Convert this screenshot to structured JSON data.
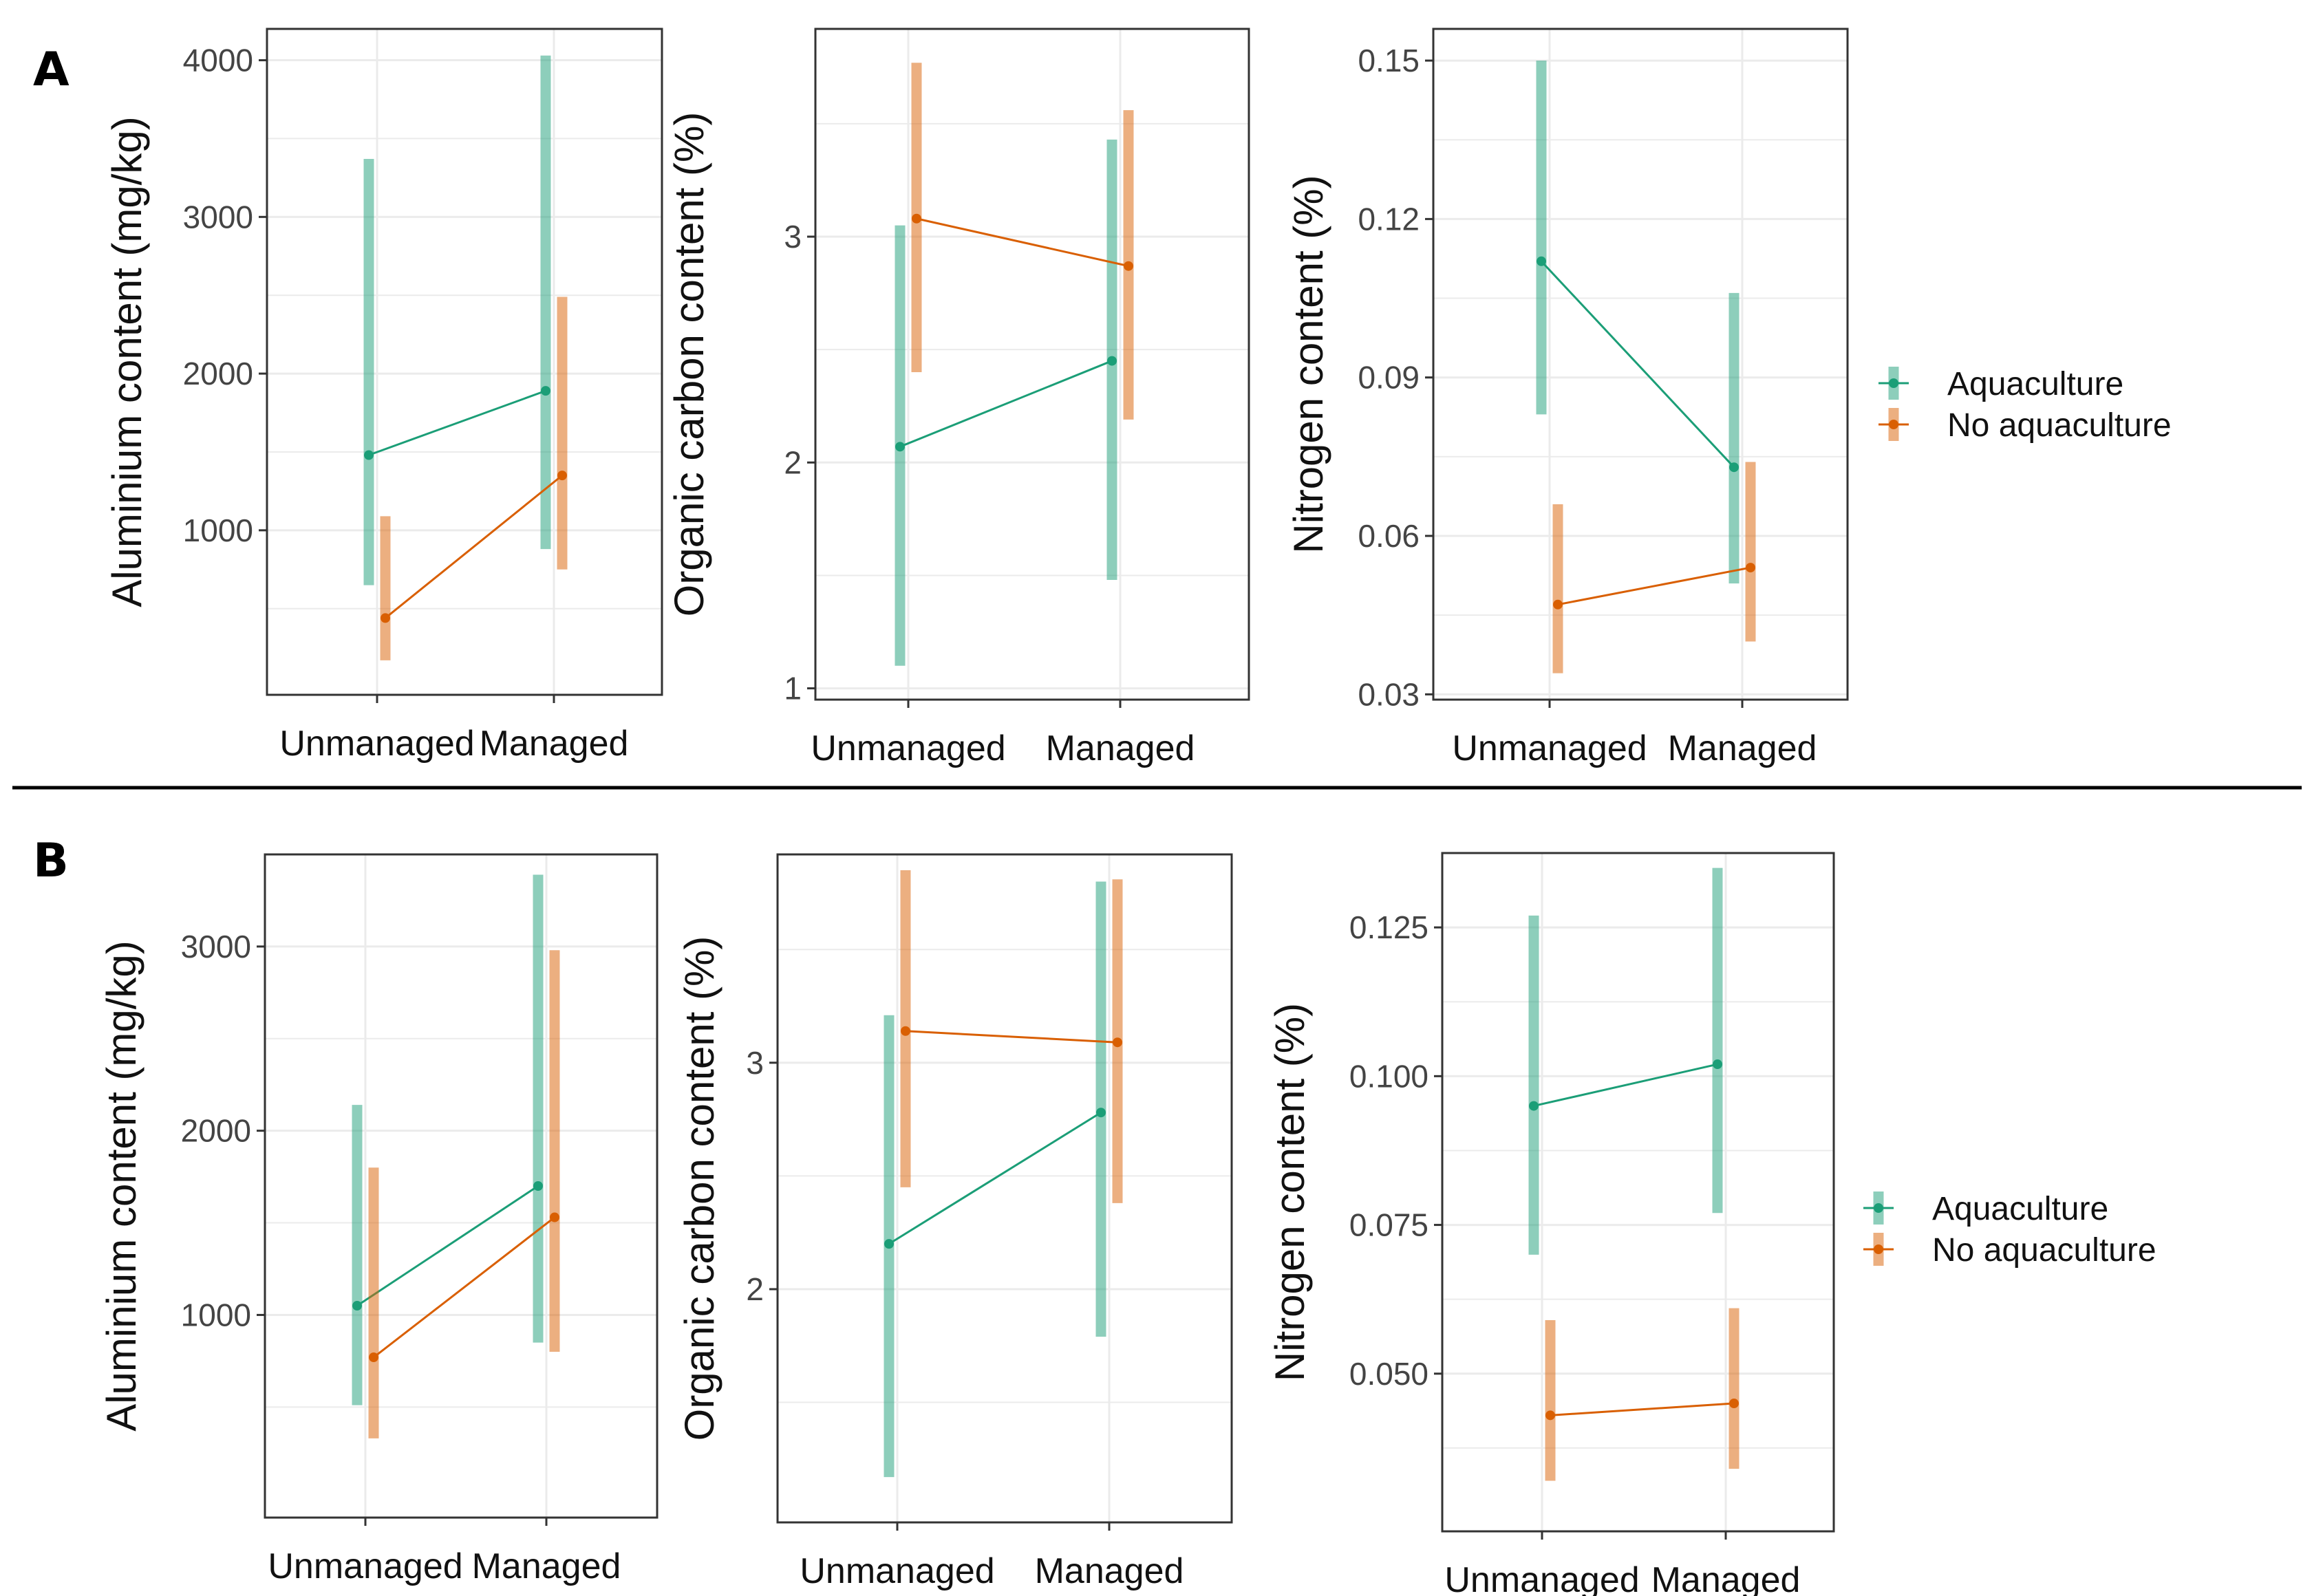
{
  "figure": {
    "colors": {
      "Aquaculture": "#1b9e77",
      "No aquaculture": "#d95f02",
      "grid": "#ebebeb",
      "frame": "#333333"
    },
    "panels": [
      {
        "letter": "A",
        "legend": {
          "items": [
            "Aquaculture",
            "No aquaculture"
          ]
        }
      },
      {
        "letter": "B",
        "legend": {
          "items": [
            "Aquaculture",
            "No aquaculture"
          ]
        }
      }
    ]
  },
  "chart_data": [
    {
      "panel": "A",
      "type": "line",
      "ylabel": "Aluminium content (mg/kg)",
      "categories": [
        "Unmanaged",
        "Managed"
      ],
      "ylim": [
        -50,
        4200
      ],
      "yticks": [
        1000,
        2000,
        3000,
        4000
      ],
      "series": [
        {
          "name": "Aquaculture",
          "values": [
            1480,
            1890
          ],
          "lower": [
            650,
            880
          ],
          "upper": [
            3370,
            4030
          ]
        },
        {
          "name": "No aquaculture",
          "values": [
            440,
            1350
          ],
          "lower": [
            170,
            750
          ],
          "upper": [
            1090,
            2490
          ]
        }
      ]
    },
    {
      "panel": "A",
      "type": "line",
      "ylabel": "Organic carbon content (%)",
      "categories": [
        "Unmanaged",
        "Managed"
      ],
      "ylim": [
        0.95,
        3.92
      ],
      "yticks": [
        1,
        2,
        3
      ],
      "series": [
        {
          "name": "Aquaculture",
          "values": [
            2.07,
            2.45
          ],
          "lower": [
            1.1,
            1.48
          ],
          "upper": [
            3.05,
            3.43
          ]
        },
        {
          "name": "No aquaculture",
          "values": [
            3.08,
            2.87
          ],
          "lower": [
            2.4,
            2.19
          ],
          "upper": [
            3.77,
            3.56
          ]
        }
      ]
    },
    {
      "panel": "A",
      "type": "line",
      "ylabel": "Nitrogen content (%)",
      "categories": [
        "Unmanaged",
        "Managed"
      ],
      "ylim": [
        0.029,
        0.156
      ],
      "yticks": [
        0.03,
        0.06,
        0.09,
        0.12,
        0.15
      ],
      "series": [
        {
          "name": "Aquaculture",
          "values": [
            0.112,
            0.073
          ],
          "lower": [
            0.083,
            0.051
          ],
          "upper": [
            0.15,
            0.106
          ]
        },
        {
          "name": "No aquaculture",
          "values": [
            0.047,
            0.054
          ],
          "lower": [
            0.034,
            0.04
          ],
          "upper": [
            0.066,
            0.074
          ]
        }
      ]
    },
    {
      "panel": "B",
      "type": "line",
      "ylabel": "Aluminium content (mg/kg)",
      "categories": [
        "Unmanaged",
        "Managed"
      ],
      "ylim": [
        -100,
        3500
      ],
      "yticks": [
        1000,
        2000,
        3000
      ],
      "series": [
        {
          "name": "Aquaculture",
          "values": [
            1050,
            1700
          ],
          "lower": [
            510,
            850
          ],
          "upper": [
            2140,
            3390
          ]
        },
        {
          "name": "No aquaculture",
          "values": [
            770,
            1530
          ],
          "lower": [
            330,
            800
          ],
          "upper": [
            1800,
            2980
          ]
        }
      ]
    },
    {
      "panel": "B",
      "type": "line",
      "ylabel": "Organic carbon content (%)",
      "categories": [
        "Unmanaged",
        "Managed"
      ],
      "ylim": [
        0.97,
        3.92
      ],
      "yticks": [
        2,
        3
      ],
      "series": [
        {
          "name": "Aquaculture",
          "values": [
            2.2,
            2.78
          ],
          "lower": [
            1.17,
            1.79
          ],
          "upper": [
            3.21,
            3.8
          ]
        },
        {
          "name": "No aquaculture",
          "values": [
            3.14,
            3.09
          ],
          "lower": [
            2.45,
            2.38
          ],
          "upper": [
            3.85,
            3.81
          ]
        }
      ]
    },
    {
      "panel": "B",
      "type": "line",
      "ylabel": "Nitrogen content (%)",
      "categories": [
        "Unmanaged",
        "Managed"
      ],
      "ylim": [
        0.0235,
        0.1375
      ],
      "yticks": [
        0.05,
        0.075,
        0.1,
        0.125
      ],
      "ytick_labels": [
        "0.050",
        "0.075",
        "0.100",
        "0.125"
      ],
      "series": [
        {
          "name": "Aquaculture",
          "values": [
            0.095,
            0.102
          ],
          "lower": [
            0.07,
            0.077
          ],
          "upper": [
            0.127,
            0.135
          ]
        },
        {
          "name": "No aquaculture",
          "values": [
            0.043,
            0.045
          ],
          "lower": [
            0.032,
            0.034
          ],
          "upper": [
            0.059,
            0.061
          ]
        }
      ]
    }
  ]
}
